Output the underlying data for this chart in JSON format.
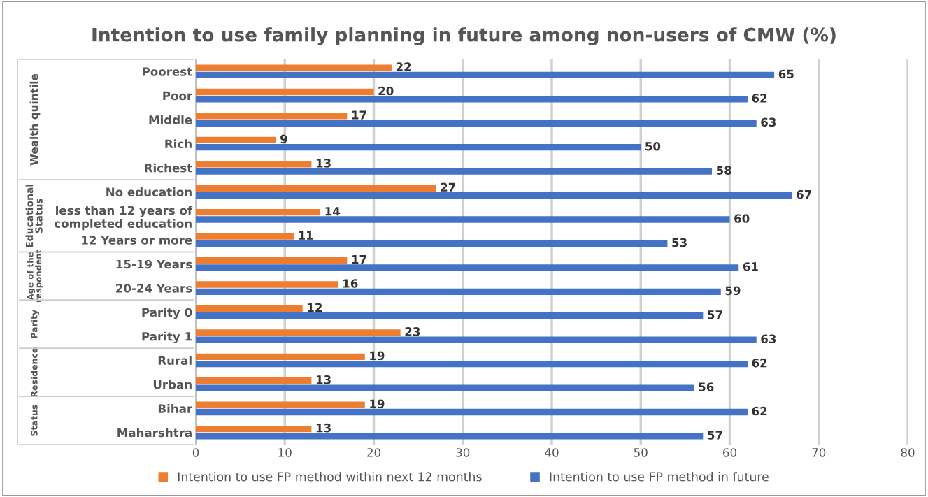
{
  "chart_data": {
    "type": "bar",
    "orientation": "horizontal",
    "title": "Intention to use family planning in future among non-users of CMW (%)",
    "categories": [
      "Poorest",
      "Poor",
      "Middle",
      "Rich",
      "Richest",
      "No education",
      "less than 12 years of\ncompleted education",
      "12 Years or more",
      "15-19 Years",
      "20-24 Years",
      "Parity 0",
      "Parity 1",
      "Rural",
      "Urban",
      "Bihar",
      "Maharshtra"
    ],
    "series": [
      {
        "name": "Intention to use FP method within next 12 months",
        "color": "#ed7d31",
        "values": [
          22,
          20,
          17,
          9,
          13,
          27,
          14,
          11,
          17,
          16,
          12,
          23,
          19,
          13,
          19,
          13
        ]
      },
      {
        "name": "Intention to use FP method in future",
        "color": "#4472c4",
        "values": [
          65,
          62,
          63,
          50,
          58,
          67,
          60,
          53,
          61,
          59,
          57,
          63,
          62,
          56,
          62,
          57
        ]
      }
    ],
    "annotations": [
      "Wealth quintile",
      "Educational\nStatus",
      "Age of the\nrespondent",
      "Parity",
      "Residence",
      "Status"
    ],
    "xlim": [
      0,
      80
    ],
    "xticks": [
      0,
      10,
      20,
      30,
      40,
      50,
      60,
      70,
      80
    ],
    "grid": "x",
    "legend": "bottom",
    "data_labels": true
  }
}
